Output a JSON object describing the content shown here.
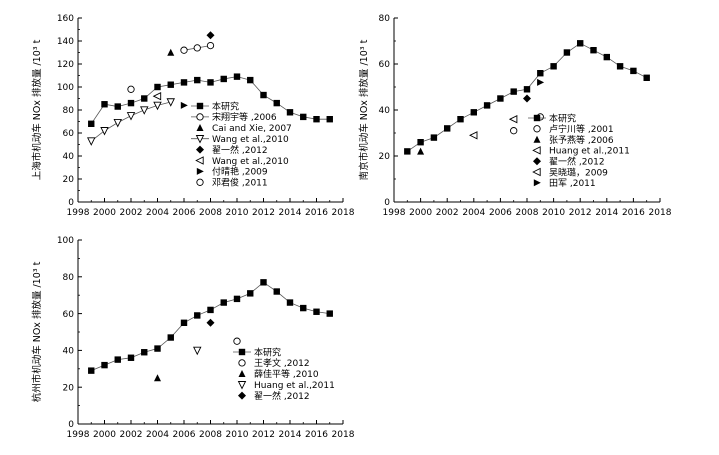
{
  "chart_data": [
    {
      "id": "shanghai",
      "type": "line",
      "ylabel": "上海市机动车 NOx 排放量 /10³ t",
      "xlim": [
        1998,
        2018
      ],
      "ylim": [
        0,
        160
      ],
      "xticks": [
        1998,
        2000,
        2002,
        2004,
        2006,
        2008,
        2010,
        2012,
        2014,
        2016,
        2018
      ],
      "yticks": [
        0,
        20,
        40,
        60,
        80,
        100,
        120,
        140,
        160
      ],
      "legend_position": "right",
      "series": [
        {
          "name": "本研究",
          "marker": "square",
          "line": true,
          "x": [
            1999,
            2000,
            2001,
            2002,
            2003,
            2004,
            2005,
            2006,
            2007,
            2008,
            2009,
            2010,
            2011,
            2012,
            2013,
            2014,
            2015,
            2016,
            2017
          ],
          "y": [
            68,
            85,
            83,
            86,
            90,
            100,
            102,
            104,
            106,
            104,
            107,
            109,
            106,
            93,
            86,
            78,
            74,
            72,
            72
          ]
        },
        {
          "name": "宋翔宇等 ,2006",
          "marker": "circle",
          "line": true,
          "x": [
            2006,
            2007,
            2008
          ],
          "y": [
            132,
            134,
            136
          ]
        },
        {
          "name": "Cai and Xie, 2007",
          "marker": "triangle-up",
          "line": false,
          "x": [
            2005
          ],
          "y": [
            130
          ]
        },
        {
          "name": "Wang et al.,2010",
          "marker": "triangle-down",
          "line": true,
          "x": [
            1999,
            2000,
            2001,
            2002,
            2003,
            2004,
            2005
          ],
          "y": [
            53,
            62,
            69,
            75,
            80,
            84,
            87
          ]
        },
        {
          "name": "翟一然 ,2012",
          "marker": "diamond",
          "line": false,
          "x": [
            2008
          ],
          "y": [
            145
          ]
        },
        {
          "name": "Wang et al.,2010",
          "marker": "triangle-left",
          "line": false,
          "x": [
            2004
          ],
          "y": [
            92
          ]
        },
        {
          "name": "付晴艳 ,2009",
          "marker": "triangle-right",
          "line": false,
          "x": [
            2006
          ],
          "y": [
            84
          ]
        },
        {
          "name": "邓君俊 ,2011",
          "marker": "circle",
          "line": false,
          "x": [
            2002
          ],
          "y": [
            98
          ]
        }
      ]
    },
    {
      "id": "nanjing",
      "type": "line",
      "ylabel": "南京市机动车 NOx 排放量 /10³ t",
      "xlim": [
        1998,
        2018
      ],
      "ylim": [
        0,
        80
      ],
      "xticks": [
        1998,
        2000,
        2002,
        2004,
        2006,
        2008,
        2010,
        2012,
        2014,
        2016,
        2018
      ],
      "yticks": [
        0,
        20,
        40,
        60,
        80
      ],
      "legend_position": "bottom-center",
      "series": [
        {
          "name": "本研究",
          "marker": "square",
          "line": true,
          "x": [
            1999,
            2000,
            2001,
            2002,
            2003,
            2004,
            2005,
            2006,
            2007,
            2008,
            2009,
            2010,
            2011,
            2012,
            2013,
            2014,
            2015,
            2016,
            2017
          ],
          "y": [
            22,
            26,
            28,
            32,
            36,
            39,
            42,
            45,
            48,
            49,
            56,
            59,
            65,
            69,
            66,
            63,
            59,
            57,
            54
          ]
        },
        {
          "name": "卢宁川等 ,2001",
          "marker": "circle",
          "line": false,
          "x": [
            2007,
            2009
          ],
          "y": [
            31,
            37
          ]
        },
        {
          "name": "张予燕等 ,2006",
          "marker": "triangle-up",
          "line": false,
          "x": [
            2000
          ],
          "y": [
            22
          ]
        },
        {
          "name": "Huang et al.,2011",
          "marker": "triangle-left",
          "line": false,
          "x": [
            2004,
            2007
          ],
          "y": [
            29,
            36
          ]
        },
        {
          "name": "翟一然 ,2012",
          "marker": "diamond",
          "line": false,
          "x": [
            2008
          ],
          "y": [
            45
          ]
        },
        {
          "name": "吴晓璐，2009",
          "marker": "triangle-left",
          "line": false,
          "x": [],
          "y": []
        },
        {
          "name": "田军 ,2011",
          "marker": "triangle-right",
          "line": false,
          "x": [
            2009
          ],
          "y": [
            52
          ]
        }
      ]
    },
    {
      "id": "hangzhou",
      "type": "line",
      "ylabel": "杭州市机动车 NOx 排放量 /10³ t",
      "xlim": [
        1998,
        2018
      ],
      "ylim": [
        0,
        100
      ],
      "xticks": [
        1998,
        2000,
        2002,
        2004,
        2006,
        2008,
        2010,
        2012,
        2014,
        2016,
        2018
      ],
      "yticks": [
        0,
        20,
        40,
        60,
        80,
        100
      ],
      "legend_position": "bottom-center",
      "series": [
        {
          "name": "本研究",
          "marker": "square",
          "line": true,
          "x": [
            1999,
            2000,
            2001,
            2002,
            2003,
            2004,
            2005,
            2006,
            2007,
            2008,
            2009,
            2010,
            2011,
            2012,
            2013,
            2014,
            2015,
            2016,
            2017
          ],
          "y": [
            29,
            32,
            35,
            36,
            39,
            41,
            47,
            55,
            59,
            62,
            66,
            68,
            71,
            77,
            72,
            66,
            63,
            61,
            60
          ]
        },
        {
          "name": "王孝文 ,2012",
          "marker": "circle",
          "line": false,
          "x": [
            2010
          ],
          "y": [
            45
          ]
        },
        {
          "name": "薛佳平等 ,2010",
          "marker": "triangle-up",
          "line": false,
          "x": [
            2004
          ],
          "y": [
            25
          ]
        },
        {
          "name": "Huang et al.,2011",
          "marker": "triangle-down",
          "line": false,
          "x": [
            2007
          ],
          "y": [
            40
          ]
        },
        {
          "name": "翟一然 ,2012",
          "marker": "diamond",
          "line": false,
          "x": [
            2008
          ],
          "y": [
            55
          ]
        }
      ]
    }
  ]
}
